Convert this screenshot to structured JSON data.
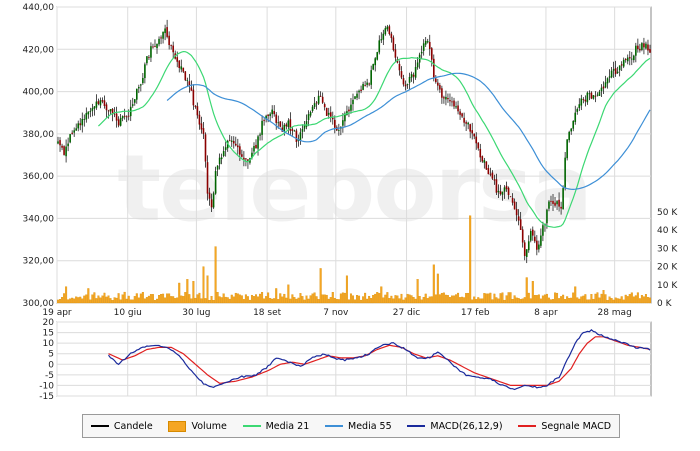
{
  "chart_data": [
    {
      "type": "candlestick",
      "x_ticks": [
        "19 apr",
        "10 giu",
        "30 lug",
        "18 set",
        "7 nov",
        "27 dic",
        "17 feb",
        "8 apr",
        "28 mag"
      ],
      "price_ticks": [
        "440,00",
        "420,00",
        "400,00",
        "380,00",
        "360,00",
        "340,00",
        "320,00",
        "300,00"
      ],
      "price_tick_values": [
        440,
        420,
        400,
        380,
        360,
        340,
        320,
        300
      ],
      "ylim": [
        300,
        440
      ],
      "volume_ticks": [
        "50 K",
        "40 K",
        "30 K",
        "20 K",
        "10 K",
        "0 K"
      ],
      "volume_tick_values": [
        50000,
        40000,
        30000,
        20000,
        10000,
        0
      ],
      "volume_ylim": [
        0,
        50000
      ],
      "price_anchors": [
        [
          0,
          378
        ],
        [
          3,
          372
        ],
        [
          8,
          383
        ],
        [
          14,
          388
        ],
        [
          20,
          396
        ],
        [
          25,
          392
        ],
        [
          30,
          385
        ],
        [
          35,
          390
        ],
        [
          40,
          402
        ],
        [
          45,
          418
        ],
        [
          50,
          426
        ],
        [
          53,
          428
        ],
        [
          56,
          422
        ],
        [
          60,
          412
        ],
        [
          64,
          405
        ],
        [
          68,
          392
        ],
        [
          72,
          380
        ],
        [
          74,
          352
        ],
        [
          76,
          345
        ],
        [
          78,
          362
        ],
        [
          82,
          372
        ],
        [
          86,
          378
        ],
        [
          90,
          370
        ],
        [
          94,
          366
        ],
        [
          98,
          375
        ],
        [
          102,
          388
        ],
        [
          106,
          390
        ],
        [
          110,
          382
        ],
        [
          114,
          385
        ],
        [
          118,
          378
        ],
        [
          122,
          383
        ],
        [
          126,
          392
        ],
        [
          130,
          398
        ],
        [
          134,
          388
        ],
        [
          138,
          382
        ],
        [
          142,
          388
        ],
        [
          146,
          395
        ],
        [
          150,
          402
        ],
        [
          154,
          405
        ],
        [
          158,
          420
        ],
        [
          162,
          430
        ],
        [
          164,
          428
        ],
        [
          168,
          412
        ],
        [
          172,
          402
        ],
        [
          176,
          408
        ],
        [
          180,
          420
        ],
        [
          183,
          425
        ],
        [
          186,
          408
        ],
        [
          190,
          398
        ],
        [
          194,
          395
        ],
        [
          198,
          390
        ],
        [
          202,
          385
        ],
        [
          206,
          378
        ],
        [
          210,
          368
        ],
        [
          214,
          360
        ],
        [
          218,
          352
        ],
        [
          222,
          354
        ],
        [
          225,
          348
        ],
        [
          228,
          338
        ],
        [
          231,
          322
        ],
        [
          234,
          335
        ],
        [
          237,
          325
        ],
        [
          240,
          335
        ],
        [
          243,
          348
        ],
        [
          246,
          348
        ],
        [
          249,
          345
        ],
        [
          252,
          378
        ],
        [
          255,
          387
        ],
        [
          258,
          395
        ],
        [
          262,
          398
        ],
        [
          266,
          396
        ],
        [
          270,
          402
        ],
        [
          274,
          408
        ],
        [
          278,
          412
        ],
        [
          282,
          415
        ],
        [
          286,
          420
        ],
        [
          290,
          422
        ],
        [
          293,
          420
        ]
      ],
      "volume_spikes": [
        [
          4,
          9000
        ],
        [
          15,
          8000
        ],
        [
          33,
          6000
        ],
        [
          60,
          11000
        ],
        [
          64,
          13000
        ],
        [
          67,
          12000
        ],
        [
          72,
          20000
        ],
        [
          74,
          15000
        ],
        [
          78,
          31000
        ],
        [
          108,
          8000
        ],
        [
          114,
          10000
        ],
        [
          130,
          19000
        ],
        [
          143,
          15000
        ],
        [
          160,
          9000
        ],
        [
          178,
          13000
        ],
        [
          186,
          21000
        ],
        [
          188,
          16000
        ],
        [
          204,
          48000
        ],
        [
          232,
          14000
        ],
        [
          235,
          12000
        ],
        [
          256,
          9000
        ],
        [
          270,
          7000
        ]
      ],
      "candle_count": 294,
      "colors": {
        "up": "#006400",
        "down": "#8b0000",
        "wick": "#000000",
        "volume": "#f5a623",
        "ma21": "#3cd873",
        "ma55": "#3d8fd6"
      }
    },
    {
      "type": "line",
      "y_ticks": [
        "20",
        "15",
        "10",
        "5",
        "0",
        "-5",
        "-10",
        "-15"
      ],
      "y_tick_values": [
        20,
        15,
        10,
        5,
        0,
        -5,
        -10,
        -15
      ],
      "ylim": [
        -15,
        20
      ],
      "macd_x_start": 25,
      "macd_anchors": [
        [
          25,
          4
        ],
        [
          30,
          0
        ],
        [
          36,
          5
        ],
        [
          42,
          8
        ],
        [
          48,
          9
        ],
        [
          54,
          8
        ],
        [
          60,
          4
        ],
        [
          66,
          -3
        ],
        [
          72,
          -9
        ],
        [
          76,
          -11
        ],
        [
          82,
          -9
        ],
        [
          90,
          -6
        ],
        [
          98,
          -5
        ],
        [
          104,
          -1
        ],
        [
          108,
          3
        ],
        [
          114,
          1
        ],
        [
          120,
          -1
        ],
        [
          126,
          3
        ],
        [
          132,
          5
        ],
        [
          136,
          3
        ],
        [
          142,
          2
        ],
        [
          148,
          3
        ],
        [
          154,
          5
        ],
        [
          160,
          9
        ],
        [
          166,
          10
        ],
        [
          172,
          7
        ],
        [
          178,
          3
        ],
        [
          184,
          3
        ],
        [
          188,
          6
        ],
        [
          192,
          3
        ],
        [
          196,
          -1
        ],
        [
          202,
          -5
        ],
        [
          208,
          -6
        ],
        [
          214,
          -7
        ],
        [
          220,
          -10
        ],
        [
          226,
          -12
        ],
        [
          232,
          -10
        ],
        [
          238,
          -11
        ],
        [
          242,
          -10
        ],
        [
          248,
          -6
        ],
        [
          252,
          2
        ],
        [
          256,
          10
        ],
        [
          260,
          15
        ],
        [
          264,
          16
        ],
        [
          268,
          14
        ],
        [
          274,
          12
        ],
        [
          280,
          10
        ],
        [
          286,
          8
        ],
        [
          293,
          7
        ]
      ],
      "signal_anchors": [
        [
          25,
          5
        ],
        [
          32,
          2
        ],
        [
          38,
          4
        ],
        [
          44,
          7
        ],
        [
          50,
          8
        ],
        [
          56,
          8
        ],
        [
          62,
          5
        ],
        [
          68,
          0
        ],
        [
          74,
          -5
        ],
        [
          80,
          -9
        ],
        [
          88,
          -8
        ],
        [
          96,
          -6
        ],
        [
          104,
          -3
        ],
        [
          110,
          0
        ],
        [
          116,
          1
        ],
        [
          122,
          0
        ],
        [
          128,
          2
        ],
        [
          134,
          4
        ],
        [
          140,
          3
        ],
        [
          146,
          3
        ],
        [
          152,
          4
        ],
        [
          158,
          7
        ],
        [
          164,
          9
        ],
        [
          170,
          8
        ],
        [
          176,
          5
        ],
        [
          182,
          3
        ],
        [
          188,
          4
        ],
        [
          194,
          2
        ],
        [
          200,
          -1
        ],
        [
          206,
          -4
        ],
        [
          212,
          -6
        ],
        [
          218,
          -8
        ],
        [
          224,
          -10
        ],
        [
          230,
          -10
        ],
        [
          236,
          -10
        ],
        [
          242,
          -10
        ],
        [
          248,
          -8
        ],
        [
          254,
          -2
        ],
        [
          258,
          5
        ],
        [
          262,
          10
        ],
        [
          266,
          13
        ],
        [
          270,
          13
        ],
        [
          276,
          11
        ],
        [
          282,
          9
        ],
        [
          288,
          8
        ],
        [
          293,
          7
        ]
      ]
    }
  ],
  "watermark": "teleborsa",
  "legend": [
    {
      "label": "Candele",
      "color": "#000000",
      "kind": "line"
    },
    {
      "label": "Volume",
      "color": "#f5a623",
      "kind": "box"
    },
    {
      "label": "Media 21",
      "color": "#3cd873",
      "kind": "line"
    },
    {
      "label": "Media 55",
      "color": "#3d8fd6",
      "kind": "line"
    },
    {
      "label": "MACD(26,12,9)",
      "color": "#1a2a9c",
      "kind": "line"
    },
    {
      "label": "Segnale MACD",
      "color": "#e02020",
      "kind": "line"
    }
  ]
}
